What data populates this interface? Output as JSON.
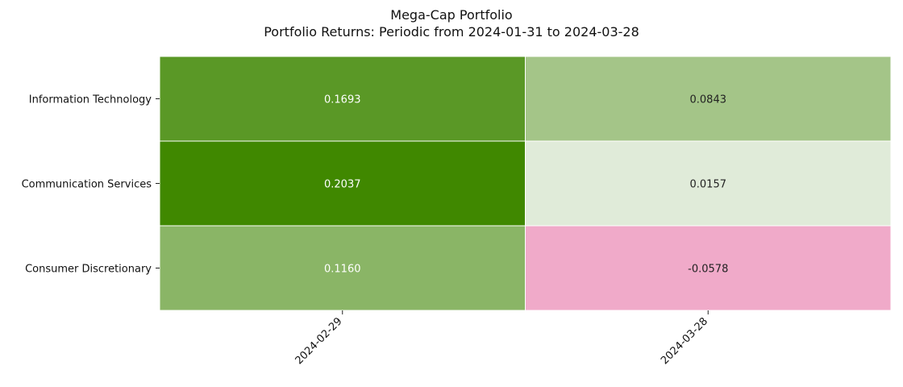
{
  "chart_data": {
    "type": "heatmap",
    "title": "Mega-Cap Portfolio",
    "subtitle": "Portfolio Returns: Periodic from 2024-01-31 to 2024-03-28",
    "rows": [
      "Information Technology",
      "Communication Services",
      "Consumer Discretionary"
    ],
    "columns": [
      "2024-02-29",
      "2024-03-28"
    ],
    "values": [
      [
        0.1693,
        0.0843
      ],
      [
        0.2037,
        0.0157
      ],
      [
        0.116,
        -0.0578
      ]
    ],
    "value_labels": [
      [
        "0.1693",
        "0.0843"
      ],
      [
        "0.2037",
        "0.0157"
      ],
      [
        "0.1160",
        "-0.0578"
      ]
    ],
    "colors": {
      "cells": [
        [
          "#5a9826",
          "#a4c588"
        ],
        [
          "#408800",
          "#e0ebd9"
        ],
        [
          "#8ab566",
          "#f0aac9"
        ]
      ],
      "label_text": [
        [
          "#ffffff",
          "#222222"
        ],
        [
          "#ffffff",
          "#222222"
        ],
        [
          "#ffffff",
          "#222222"
        ]
      ]
    },
    "colorbar": false,
    "grid": false,
    "legend": "none"
  }
}
